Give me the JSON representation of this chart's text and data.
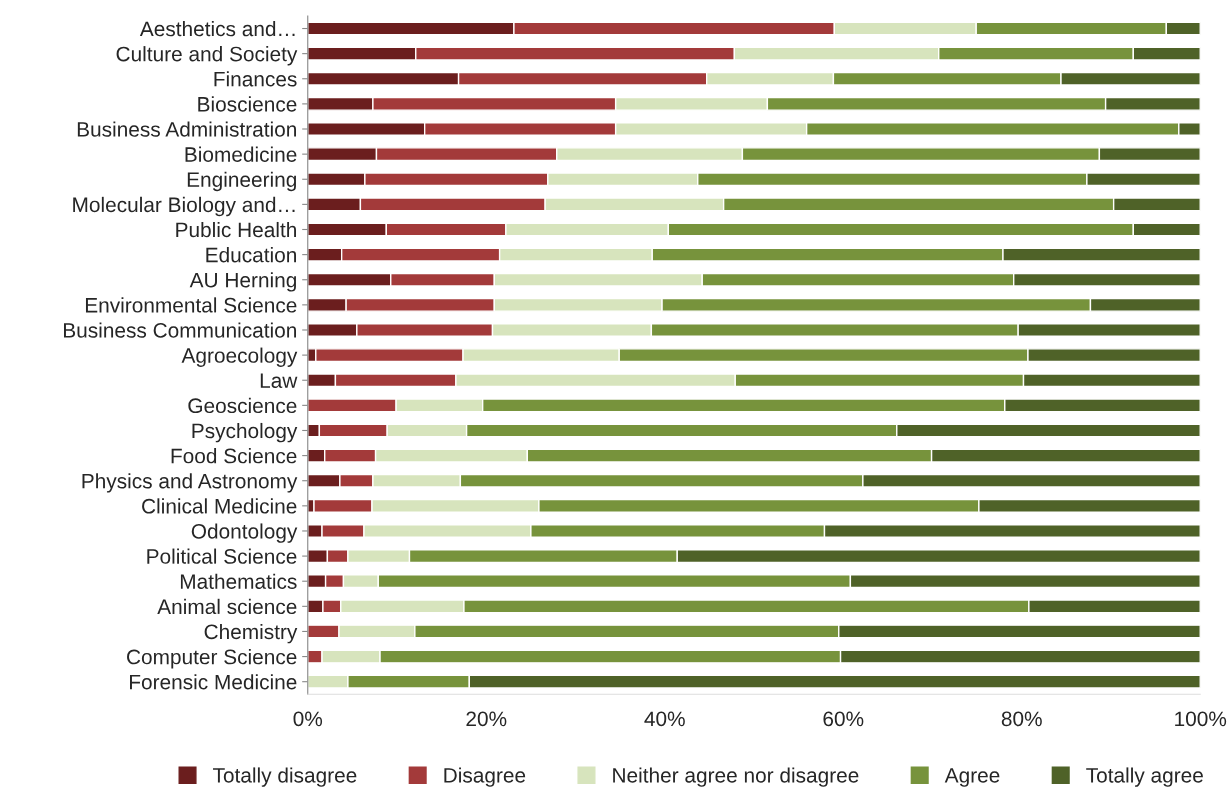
{
  "chart_data": {
    "type": "bar",
    "orientation": "horizontal",
    "stacked": true,
    "categories": [
      "Aesthetics and…",
      "Culture and Society",
      "Finances",
      "Bioscience",
      "Business Administration",
      "Biomedicine",
      "Engineering",
      "Molecular Biology and…",
      "Public Health",
      "Education",
      "AU Herning",
      "Environmental Science",
      "Business Communication",
      "Agroecology",
      "Law",
      "Geoscience",
      "Psychology",
      "Food Science",
      "Physics and Astronomy",
      "Clinical Medicine",
      "Odontology",
      "Political Science",
      "Mathematics",
      "Animal science",
      "Chemistry",
      "Computer Science",
      "Forensic Medicine"
    ],
    "series": [
      {
        "name": "Totally disagree",
        "color": "#6b1e1e",
        "values": [
          23.1,
          12.1,
          16.9,
          7.3,
          13.1,
          7.7,
          6.4,
          5.9,
          8.8,
          3.8,
          9.3,
          4.3,
          5.5,
          0.9,
          3.1,
          0,
          1.3,
          1.9,
          3.6,
          0.7,
          1.6,
          2.2,
          2.0,
          1.7,
          0,
          0,
          0
        ]
      },
      {
        "name": "Disagree",
        "color": "#a33a3a",
        "values": [
          35.9,
          35.7,
          27.8,
          27.2,
          21.4,
          20.2,
          20.5,
          20.7,
          13.4,
          17.7,
          11.6,
          16.6,
          15.2,
          16.5,
          13.5,
          9.9,
          7.6,
          5.7,
          3.7,
          6.5,
          4.7,
          2.3,
          2.0,
          2.0,
          3.5,
          1.6,
          0
        ]
      },
      {
        "name": "Neither agree nor disagree",
        "color": "#d7e4bd",
        "values": [
          15.9,
          22.9,
          14.2,
          17.0,
          21.4,
          20.8,
          16.8,
          20.0,
          18.2,
          17.1,
          23.3,
          18.8,
          17.8,
          17.5,
          31.3,
          9.7,
          8.9,
          17.0,
          9.8,
          18.7,
          18.7,
          6.9,
          3.9,
          13.8,
          8.5,
          6.5,
          4.5
        ]
      },
      {
        "name": "Agree",
        "color": "#77933c",
        "values": [
          21.3,
          21.8,
          25.5,
          37.9,
          41.7,
          40.0,
          43.6,
          43.7,
          52.1,
          39.3,
          34.9,
          48.0,
          41.1,
          45.8,
          32.3,
          58.5,
          48.2,
          45.3,
          45.1,
          49.3,
          32.9,
          30.0,
          52.9,
          63.3,
          47.5,
          51.6,
          13.6
        ]
      },
      {
        "name": "Totally agree",
        "color": "#4f6228",
        "values": [
          3.8,
          7.5,
          15.6,
          10.6,
          2.4,
          11.3,
          12.7,
          9.7,
          7.5,
          22.1,
          20.9,
          12.3,
          20.4,
          19.3,
          19.8,
          21.9,
          34.0,
          30.1,
          37.8,
          24.8,
          42.1,
          58.6,
          39.2,
          19.2,
          40.5,
          40.3,
          81.9
        ]
      }
    ],
    "xlim": [
      0,
      100
    ],
    "xticks": [
      {
        "value": 0,
        "label": "0%"
      },
      {
        "value": 20,
        "label": "20%"
      },
      {
        "value": 40,
        "label": "40%"
      },
      {
        "value": 60,
        "label": "60%"
      },
      {
        "value": 80,
        "label": "80%"
      },
      {
        "value": 100,
        "label": "100%"
      }
    ],
    "legend": "bottom",
    "grid": false
  }
}
